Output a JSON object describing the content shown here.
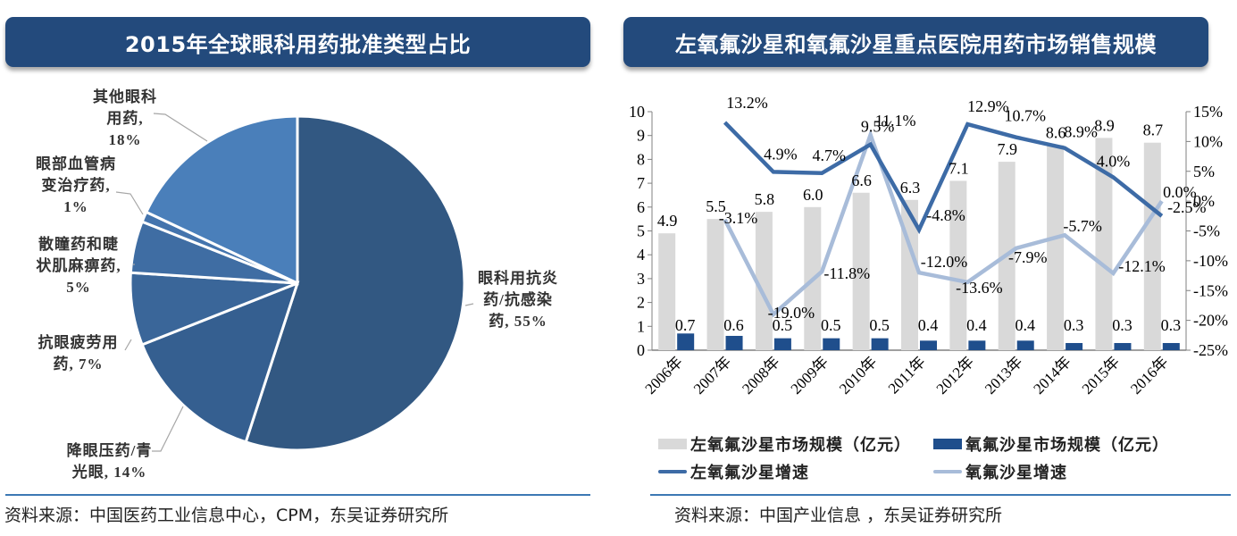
{
  "left_panel": {
    "title": "2015年全球眼科用药批准类型占比",
    "source": "资料来源：中国医药工业信息中心，CPM，东吴证券研究所"
  },
  "right_panel": {
    "title": "左氧氟沙星和氧氟沙星重点医院用药市场销售规模",
    "source": "资料来源：中国产业信息 ，东吴证券研究所"
  },
  "colors": {
    "title_bg": "#234a7c",
    "pie_main": "#325882",
    "pie_14": "#355f90",
    "pie_7": "#3a6699",
    "pie_5": "#3f6da3",
    "pie_1": "#4474ad",
    "pie_18": "#4a7fba",
    "bar_levo": "#d9d9d9",
    "bar_oflox": "#1f4e8c",
    "line_levo": "#3d6ba6",
    "line_oflox": "#a8bcd9",
    "separator": "#3c78b4"
  },
  "chart_data": [
    {
      "type": "pie",
      "title": "2015年全球眼科用药批准类型占比",
      "slices": [
        {
          "label": "眼科用抗炎药/抗感染药",
          "value": 55,
          "display": [
            "眼科用抗炎",
            "药/抗感染",
            "药, 55%"
          ]
        },
        {
          "label": "降眼压药/青光眼",
          "value": 14,
          "display": [
            "降眼压药/青",
            "光眼, 14%"
          ]
        },
        {
          "label": "抗眼疲劳用药",
          "value": 7,
          "display": [
            "抗眼疲劳用",
            "药, 7%"
          ]
        },
        {
          "label": "散瞳药和睫状肌麻痹药",
          "value": 5,
          "display": [
            "散瞳药和睫",
            "状肌麻痹药,",
            "5%"
          ]
        },
        {
          "label": "眼部血管病变治疗药",
          "value": 1,
          "display": [
            "眼部血管病",
            "变治疗药,",
            "1%"
          ]
        },
        {
          "label": "其他眼科用药",
          "value": 18,
          "display": [
            "其他眼科",
            "用药,",
            "18%"
          ]
        }
      ]
    },
    {
      "type": "bar+line",
      "title": "左氧氟沙星和氧氟沙星重点医院用药市场销售规模",
      "categories": [
        "2006年",
        "2007年",
        "2008年",
        "2009年",
        "2010年",
        "2011年",
        "2012年",
        "2013年",
        "2014年",
        "2015年",
        "2016年"
      ],
      "series": [
        {
          "name": "左氧氟沙星市场规模（亿元）",
          "type": "bar",
          "axis": "left",
          "values": [
            4.9,
            5.5,
            5.8,
            6.0,
            6.6,
            6.3,
            7.1,
            7.9,
            8.6,
            8.9,
            8.7
          ],
          "labels": [
            "4.9",
            "5.5",
            "5.8",
            "6.0",
            "6.6",
            "6.3",
            "7.1",
            "7.9",
            "8.6",
            "8.9",
            "8.7"
          ]
        },
        {
          "name": "氧氟沙星市场规模（亿元）",
          "type": "bar",
          "axis": "left",
          "values": [
            0.7,
            0.6,
            0.5,
            0.5,
            0.5,
            0.4,
            0.4,
            0.4,
            0.3,
            0.3,
            0.3
          ],
          "labels": [
            "0.7",
            "0.6",
            "0.5",
            "0.5",
            "0.5",
            "0.4",
            "0.4",
            "0.4",
            "0.3",
            "0.3",
            "0.3"
          ]
        },
        {
          "name": "左氧氟沙星增速",
          "type": "line",
          "axis": "right",
          "values": [
            null,
            13.2,
            4.9,
            4.7,
            9.5,
            -4.8,
            12.9,
            10.7,
            8.9,
            4.0,
            -2.5
          ],
          "labels": [
            "",
            "13.2%",
            "4.9%",
            "4.7%",
            "9.5%",
            "-4.8%",
            "12.9%",
            "10.7%",
            "8.9%",
            "4.0%",
            "-2.5%"
          ]
        },
        {
          "name": "氧氟沙星增速",
          "type": "line",
          "axis": "right",
          "values": [
            null,
            -3.1,
            -19.0,
            -11.8,
            11.1,
            -12.0,
            -13.6,
            -7.9,
            -5.7,
            -12.1,
            0.0
          ],
          "labels": [
            "",
            "-3.1%",
            "-19.0%",
            "-11.8%",
            "11.1%",
            "-12.0%",
            "-13.6%",
            "-7.9%",
            "-5.7%",
            "-12.1%",
            "0.0%"
          ]
        }
      ],
      "y_left": {
        "min": 0,
        "max": 10,
        "ticks": [
          "0",
          "1",
          "2",
          "3",
          "4",
          "5",
          "6",
          "7",
          "8",
          "9",
          "10"
        ]
      },
      "y_right": {
        "min": -25,
        "max": 15,
        "ticks": [
          "-25%",
          "-20%",
          "-15%",
          "-10%",
          "-5%",
          "0%",
          "5%",
          "10%",
          "15%"
        ]
      },
      "legend": [
        "左氧氟沙星市场规模（亿元）",
        "氧氟沙星市场规模（亿元）",
        "左氧氟沙星增速",
        "氧氟沙星增速"
      ],
      "legend_position": "bottom",
      "grid": false
    }
  ]
}
